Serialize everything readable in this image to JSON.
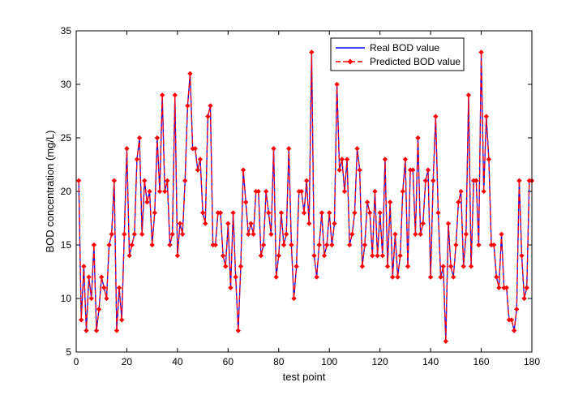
{
  "chart_data": {
    "type": "line",
    "title": "",
    "xlabel": "test point",
    "ylabel": "BOD concentration (mg/L)",
    "xlim": [
      0,
      180
    ],
    "ylim": [
      5,
      35
    ],
    "xticks": [
      0,
      20,
      40,
      60,
      80,
      100,
      120,
      140,
      160,
      180
    ],
    "yticks": [
      5,
      10,
      15,
      20,
      25,
      30,
      35
    ],
    "grid": false,
    "legend_position": "top-right",
    "x": [
      1,
      2,
      3,
      4,
      5,
      6,
      7,
      8,
      9,
      10,
      11,
      12,
      13,
      14,
      15,
      16,
      17,
      18,
      19,
      20,
      21,
      22,
      23,
      24,
      25,
      26,
      27,
      28,
      29,
      30,
      31,
      32,
      33,
      34,
      35,
      36,
      37,
      38,
      39,
      40,
      41,
      42,
      43,
      44,
      45,
      46,
      47,
      48,
      49,
      50,
      51,
      52,
      53,
      54,
      55,
      56,
      57,
      58,
      59,
      60,
      61,
      62,
      63,
      64,
      65,
      66,
      67,
      68,
      69,
      70,
      71,
      72,
      73,
      74,
      75,
      76,
      77,
      78,
      79,
      80,
      81,
      82,
      83,
      84,
      85,
      86,
      87,
      88,
      89,
      90,
      91,
      92,
      93,
      94,
      95,
      96,
      97,
      98,
      99,
      100,
      101,
      102,
      103,
      104,
      105,
      106,
      107,
      108,
      109,
      110,
      111,
      112,
      113,
      114,
      115,
      116,
      117,
      118,
      119,
      120,
      121,
      122,
      123,
      124,
      125,
      126,
      127,
      128,
      129,
      130,
      131,
      132,
      133,
      134,
      135,
      136,
      137,
      138,
      139,
      140,
      141,
      142,
      143,
      144,
      145,
      146,
      147,
      148,
      149,
      150,
      151,
      152,
      153,
      154,
      155,
      156,
      157,
      158,
      159,
      160,
      161,
      162,
      163,
      164,
      165,
      166,
      167,
      168,
      169,
      170,
      171,
      172,
      173,
      174,
      175,
      176,
      177,
      178,
      179,
      180
    ],
    "series": [
      {
        "name": "Real BOD value",
        "color": "#0000ff",
        "style": "solid",
        "values": [
          21,
          8,
          13,
          7,
          12,
          10,
          15,
          7,
          9,
          12,
          11,
          10,
          15,
          16,
          21,
          7,
          11,
          8,
          16,
          24,
          14,
          15,
          16,
          23,
          25,
          16,
          21,
          19,
          20,
          15,
          18,
          25,
          20,
          29,
          20,
          21,
          15,
          16,
          29,
          14,
          17,
          16,
          21,
          28,
          31,
          24,
          24,
          22,
          23,
          18,
          17,
          27,
          28,
          15,
          15,
          18,
          18,
          14,
          13,
          17,
          11,
          18,
          12,
          7,
          13,
          22,
          19,
          16,
          17,
          16,
          20,
          20,
          14,
          15,
          20,
          18,
          16,
          24,
          12,
          14,
          18,
          15,
          16,
          24,
          15,
          10,
          13,
          20,
          20,
          18,
          21,
          17,
          33,
          14,
          12,
          15,
          18,
          14,
          15,
          18,
          15,
          17,
          30,
          22,
          23,
          20,
          23,
          15,
          16,
          18,
          24,
          22,
          13,
          15,
          19,
          18,
          14,
          20,
          14,
          18,
          14,
          23,
          13,
          19,
          12,
          16,
          12,
          14,
          20,
          23,
          13,
          22,
          22,
          16,
          25,
          16,
          17,
          21,
          22,
          12,
          21,
          27,
          18,
          12,
          13,
          6,
          17,
          13,
          12,
          15,
          19,
          20,
          13,
          16,
          29,
          13,
          21,
          21,
          15,
          33,
          20,
          27,
          23,
          15,
          15,
          12,
          11,
          16,
          11,
          11,
          8,
          8,
          7,
          9,
          21,
          14,
          10,
          11,
          21,
          21
        ]
      },
      {
        "name": "Predicted BOD value",
        "color": "#ff0000",
        "style": "dashed",
        "marker": "diamond",
        "values": [
          21,
          8,
          13,
          7,
          12,
          10,
          15,
          7,
          9,
          12,
          11,
          10,
          15,
          16,
          21,
          7,
          11,
          8,
          16,
          24,
          14,
          15,
          16,
          23,
          25,
          16,
          21,
          19,
          20,
          15,
          18,
          25,
          20,
          29,
          20,
          21,
          15,
          16,
          29,
          14,
          17,
          16,
          21,
          28,
          31,
          24,
          24,
          22,
          23,
          18,
          17,
          27,
          28,
          15,
          15,
          18,
          18,
          14,
          13,
          17,
          11,
          18,
          12,
          7,
          13,
          22,
          19,
          16,
          17,
          16,
          20,
          20,
          14,
          15,
          20,
          18,
          16,
          24,
          12,
          14,
          18,
          15,
          16,
          24,
          15,
          10,
          13,
          20,
          20,
          18,
          21,
          17,
          33,
          14,
          12,
          15,
          18,
          14,
          15,
          18,
          15,
          17,
          30,
          22,
          23,
          20,
          23,
          15,
          16,
          18,
          24,
          22,
          13,
          15,
          19,
          18,
          14,
          20,
          14,
          18,
          14,
          23,
          13,
          19,
          12,
          16,
          12,
          14,
          20,
          23,
          13,
          22,
          22,
          16,
          25,
          16,
          17,
          21,
          22,
          12,
          21,
          27,
          18,
          12,
          13,
          6,
          17,
          13,
          12,
          15,
          19,
          20,
          13,
          16,
          29,
          13,
          21,
          21,
          15,
          33,
          20,
          27,
          23,
          15,
          15,
          12,
          11,
          16,
          11,
          11,
          8,
          8,
          7,
          9,
          21,
          14,
          10,
          11,
          21,
          21
        ]
      }
    ]
  }
}
